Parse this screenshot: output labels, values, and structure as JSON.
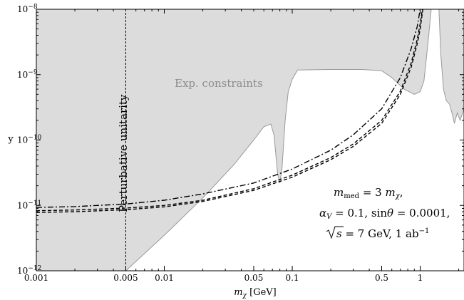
{
  "chart_data": {
    "type": "line",
    "xlabel": "m_χ [GeV]",
    "ylabel": "y",
    "xscale": "log",
    "yscale": "log",
    "xlim": [
      0.001,
      2.2
    ],
    "ylim": [
      1e-12,
      1e-08
    ],
    "x_ticks": [
      {
        "value": 0.001,
        "label": "0.001"
      },
      {
        "value": 0.005,
        "label": "0.005"
      },
      {
        "value": 0.01,
        "label": "0.01"
      },
      {
        "value": 0.05,
        "label": "0.05"
      },
      {
        "value": 0.1,
        "label": "0.1"
      },
      {
        "value": 0.5,
        "label": "0.5"
      },
      {
        "value": 1,
        "label": "1"
      }
    ],
    "y_ticks": [
      {
        "value": 1e-12,
        "label": "10",
        "exp": "−12"
      },
      {
        "value": 1e-11,
        "label": "10",
        "exp": "−11"
      },
      {
        "value": 1e-10,
        "label": "10",
        "exp": "−10"
      },
      {
        "value": 1e-09,
        "label": "10",
        "exp": "−9"
      },
      {
        "value": 1e-08,
        "label": "10",
        "exp": "−8"
      }
    ],
    "grid": false,
    "legend": "none",
    "constraint_label": "Exp. constraints",
    "constraint_fill": "#dcdcdc",
    "constraint_edge": "#9a9a9a",
    "unitarity_label": "Perturbative unitarity",
    "unitarity_x": 0.005,
    "constraint_boundary": [
      [
        0.005,
        1e-12
      ],
      [
        0.01,
        3.5e-12
      ],
      [
        0.02,
        1.3e-11
      ],
      [
        0.035,
        4.2e-11
      ],
      [
        0.05,
        1e-10
      ],
      [
        0.06,
        1.6e-10
      ],
      [
        0.068,
        1.75e-10
      ],
      [
        0.072,
        1.2e-10
      ],
      [
        0.077,
        3e-11
      ],
      [
        0.08,
        2.2e-11
      ],
      [
        0.083,
        3.5e-11
      ],
      [
        0.088,
        2e-10
      ],
      [
        0.093,
        5.5e-10
      ],
      [
        0.1,
        8.5e-10
      ],
      [
        0.11,
        1.18e-09
      ],
      [
        0.2,
        1.2e-09
      ],
      [
        0.35,
        1.2e-09
      ],
      [
        0.5,
        1.15e-09
      ],
      [
        0.6,
        9e-10
      ],
      [
        0.75,
        6e-10
      ],
      [
        0.9,
        5e-10
      ],
      [
        1.0,
        5.5e-10
      ],
      [
        1.07,
        8e-10
      ],
      [
        1.15,
        3e-09
      ],
      [
        1.22,
        1e-08
      ]
    ],
    "constraint_boundary_right": [
      [
        1.4,
        1e-08
      ],
      [
        1.45,
        2e-09
      ],
      [
        1.52,
        6e-10
      ],
      [
        1.6,
        4e-10
      ],
      [
        1.7,
        3.5e-10
      ],
      [
        1.78,
        2.5e-10
      ],
      [
        1.85,
        1.8e-10
      ],
      [
        1.95,
        2.6e-10
      ],
      [
        2.05,
        2e-10
      ],
      [
        2.2,
        3e-10
      ],
      [
        2.2,
        1e-08
      ]
    ],
    "series": [
      {
        "style": "dashed",
        "points": [
          [
            0.001,
            7.8e-12
          ],
          [
            0.002,
            8e-12
          ],
          [
            0.005,
            8.6e-12
          ],
          [
            0.01,
            9.5e-12
          ],
          [
            0.02,
            1.15e-11
          ],
          [
            0.05,
            1.7e-11
          ],
          [
            0.1,
            2.7e-11
          ],
          [
            0.2,
            5e-11
          ],
          [
            0.3,
            8e-11
          ],
          [
            0.5,
            1.8e-10
          ],
          [
            0.7,
            5e-10
          ],
          [
            0.85,
            1.3e-09
          ],
          [
            0.95,
            3e-09
          ],
          [
            1.0,
            5e-09
          ],
          [
            1.05,
            1e-08
          ]
        ]
      },
      {
        "style": "dashed",
        "points": [
          [
            0.001,
            8.3e-12
          ],
          [
            0.002,
            8.5e-12
          ],
          [
            0.005,
            9.1e-12
          ],
          [
            0.01,
            1e-11
          ],
          [
            0.02,
            1.2e-11
          ],
          [
            0.05,
            1.8e-11
          ],
          [
            0.1,
            2.9e-11
          ],
          [
            0.2,
            5.4e-11
          ],
          [
            0.3,
            8.7e-11
          ],
          [
            0.5,
            2e-10
          ],
          [
            0.7,
            5.6e-10
          ],
          [
            0.85,
            1.5e-09
          ],
          [
            0.95,
            3.5e-09
          ],
          [
            1.0,
            6e-09
          ],
          [
            1.04,
            1e-08
          ]
        ]
      },
      {
        "style": "dashdot",
        "points": [
          [
            0.001,
            9.3e-12
          ],
          [
            0.002,
            9.6e-12
          ],
          [
            0.005,
            1.05e-11
          ],
          [
            0.01,
            1.2e-11
          ],
          [
            0.02,
            1.5e-11
          ],
          [
            0.05,
            2.2e-11
          ],
          [
            0.1,
            3.6e-11
          ],
          [
            0.2,
            7e-11
          ],
          [
            0.3,
            1.2e-10
          ],
          [
            0.5,
            3e-10
          ],
          [
            0.7,
            9e-10
          ],
          [
            0.85,
            2.5e-09
          ],
          [
            0.95,
            5.5e-09
          ],
          [
            1.0,
            1e-08
          ]
        ]
      }
    ],
    "annotations": {
      "line1": {
        "m": "m",
        "med": "med",
        "eq": " = 3 ",
        "mchi": "m",
        "chi": "χ",
        "tail": ","
      },
      "line2": {
        "alpha": "α",
        "V": "V",
        "eq1": " = 0.1, sin",
        "theta": "θ",
        "eq2": " = 0.0001,"
      },
      "line3": {
        "s": "s",
        "rest": " = 7 GeV, 1 ab",
        "exp": "−1"
      }
    }
  }
}
